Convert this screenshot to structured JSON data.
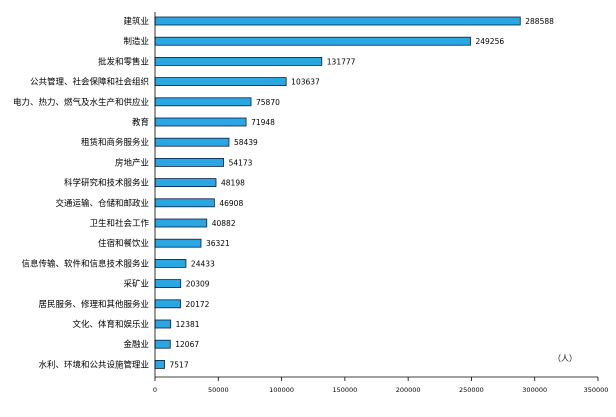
{
  "chart_data": {
    "type": "bar",
    "orientation": "horizontal",
    "categories": [
      "建筑业",
      "制造业",
      "批发和零售业",
      "公共管理、社会保障和社会组织",
      "电力、热力、燃气及水生产和供应业",
      "教育",
      "租赁和商务服务业",
      "房地产业",
      "科学研究和技术服务业",
      "交通运输、仓储和邮政业",
      "卫生和社会工作",
      "住宿和餐饮业",
      "信息传输、软件和信息技术服务业",
      "采矿业",
      "居民服务、修理和其他服务业",
      "文化、体育和娱乐业",
      "金融业",
      "水利、环境和公共设施管理业"
    ],
    "values": [
      288588,
      249256,
      131777,
      103637,
      75870,
      71948,
      58439,
      54173,
      48198,
      46908,
      40882,
      36321,
      24433,
      20309,
      20172,
      12381,
      12067,
      7517
    ],
    "value_labels": [
      "288588",
      "249256",
      "131777",
      "103637",
      "75870",
      "71948",
      "58439",
      "54173",
      "48198",
      "46908",
      "40882",
      "36321",
      "24433",
      "20309",
      "20172",
      "12381",
      "12067",
      "7517"
    ],
    "xlim": [
      0,
      350000
    ],
    "xticks": [
      0,
      50000,
      100000,
      150000,
      200000,
      250000,
      300000,
      350000
    ],
    "xtick_labels": [
      "0",
      "50000",
      "100000",
      "150000",
      "200000",
      "250000",
      "300000",
      "350000"
    ],
    "unit": "（人）",
    "bar_color": "#2aa7e0",
    "bar_outline_color": "#0b1d4a",
    "grid": false
  }
}
